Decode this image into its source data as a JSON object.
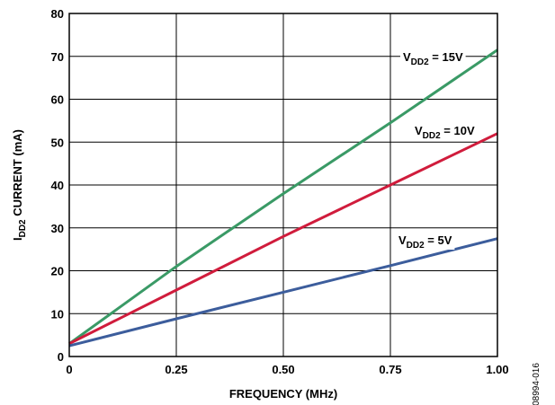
{
  "chart_data": {
    "type": "line",
    "xlabel": "FREQUENCY (MHz)",
    "ylabel": {
      "main": "I",
      "sub": "DD2",
      "rest": " CURRENT (mA)"
    },
    "xlim": [
      0,
      1.0
    ],
    "ylim": [
      0,
      80
    ],
    "x_ticks": [
      0,
      0.25,
      0.5,
      0.75,
      1.0
    ],
    "x_tick_labels": [
      "0",
      "0.25",
      "0.50",
      "0.75",
      "1.00"
    ],
    "y_ticks": [
      0,
      10,
      20,
      30,
      40,
      50,
      60,
      70,
      80
    ],
    "y_tick_labels": [
      "0",
      "10",
      "20",
      "30",
      "40",
      "50",
      "60",
      "70",
      "80"
    ],
    "grid": true,
    "series": [
      {
        "label_main": "V",
        "label_sub": "DD2",
        "label_rest": " = 15V",
        "color": "#3a9a66",
        "x": [
          0,
          0.25,
          0.5,
          0.75,
          1.0
        ],
        "y": [
          3.0,
          21.0,
          38.0,
          54.5,
          71.5
        ]
      },
      {
        "label_main": "V",
        "label_sub": "DD2",
        "label_rest": " = 10V",
        "color": "#d01c3c",
        "x": [
          0,
          0.25,
          0.5,
          0.75,
          1.0
        ],
        "y": [
          3.0,
          15.5,
          28.0,
          40.0,
          52.0
        ]
      },
      {
        "label_main": "V",
        "label_sub": "DD2",
        "label_rest": " = 5V",
        "color": "#3c5d9c",
        "x": [
          0,
          0.25,
          0.5,
          0.75,
          1.0
        ],
        "y": [
          2.5,
          8.8,
          15.0,
          21.2,
          27.5
        ]
      }
    ]
  },
  "side_code": "08994-016"
}
